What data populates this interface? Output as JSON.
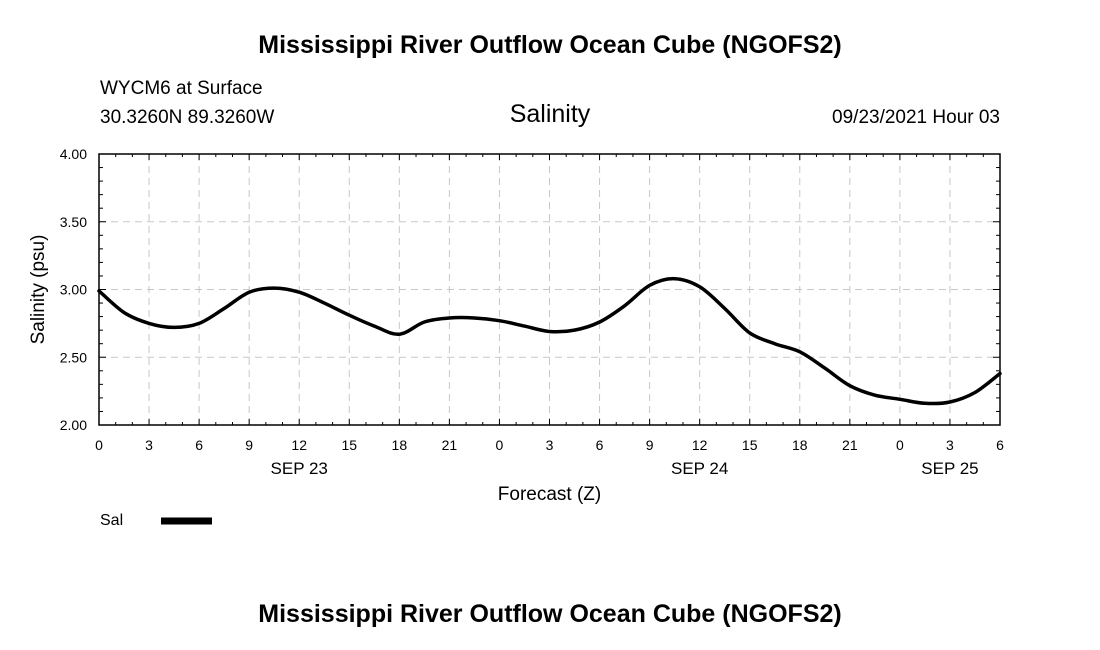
{
  "page": {
    "title_top": "Mississippi River Outflow Ocean Cube (NGOFS2)",
    "title_bottom": "Mississippi River Outflow Ocean Cube (NGOFS2)",
    "station": "WYCM6 at Surface",
    "location": "30.3260N  89.3260W",
    "datetime": "09/23/2021 Hour 03"
  },
  "chart_data": {
    "type": "line",
    "title": "Salinity",
    "xlabel": "Forecast (Z)",
    "ylabel": "Salinity (psu)",
    "xlim": [
      0,
      54
    ],
    "ylim": [
      2.0,
      4.0
    ],
    "grid": true,
    "x_ticks": [
      0,
      3,
      6,
      9,
      12,
      15,
      18,
      21,
      24,
      27,
      30,
      33,
      36,
      39,
      42,
      45,
      48,
      51,
      54
    ],
    "x_tick_labels": [
      "0",
      "3",
      "6",
      "9",
      "12",
      "15",
      "18",
      "21",
      "0",
      "3",
      "6",
      "9",
      "12",
      "15",
      "18",
      "21",
      "0",
      "3",
      "6"
    ],
    "y_ticks": [
      2.0,
      2.5,
      3.0,
      3.5,
      4.0
    ],
    "y_tick_labels": [
      "2.00",
      "2.50",
      "3.00",
      "3.50",
      "4.00"
    ],
    "date_labels": [
      {
        "label": "SEP 23",
        "x": 12
      },
      {
        "label": "SEP 24",
        "x": 36
      },
      {
        "label": "SEP 25",
        "x": 51
      }
    ],
    "series": [
      {
        "name": "Sal",
        "color": "#000000",
        "x": [
          0,
          1.5,
          3,
          4.5,
          6,
          7.5,
          9,
          10.5,
          12,
          13.5,
          15,
          16.5,
          18,
          19.5,
          21,
          22.5,
          24,
          25.5,
          27,
          28.5,
          30,
          31.5,
          33,
          34.5,
          36,
          37.5,
          39,
          40.5,
          42,
          43.5,
          45,
          46.5,
          48,
          49.5,
          51,
          52.5,
          54
        ],
        "values": [
          2.99,
          2.83,
          2.75,
          2.72,
          2.75,
          2.86,
          2.98,
          3.01,
          2.98,
          2.9,
          2.81,
          2.73,
          2.67,
          2.76,
          2.79,
          2.79,
          2.77,
          2.73,
          2.69,
          2.7,
          2.76,
          2.88,
          3.03,
          3.08,
          3.02,
          2.86,
          2.68,
          2.6,
          2.54,
          2.42,
          2.29,
          2.22,
          2.19,
          2.16,
          2.17,
          2.24,
          2.38
        ]
      }
    ]
  }
}
